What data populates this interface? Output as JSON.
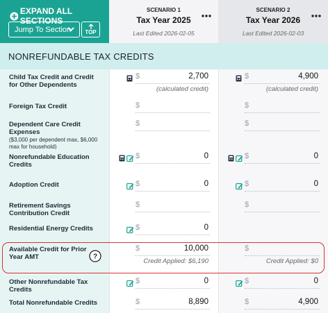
{
  "header": {
    "expand_all": "EXPAND ALL SECTIONS",
    "jump_to": "Jump To Section",
    "top": "TOP"
  },
  "scenarios": [
    {
      "label": "SCENARIO 1",
      "title": "Tax Year 2025",
      "last_edited": "Last Edited 2026-02-05"
    },
    {
      "label": "SCENARIO 2",
      "title": "Tax Year 2026",
      "last_edited": "Last Edited 2026-02-03"
    }
  ],
  "section": {
    "title": "NONREFUNDABLE TAX CREDITS",
    "rows": [
      {
        "label": "Child Tax Credit and Credit for Other Dependents",
        "cells": [
          {
            "currency": "$",
            "value": "2,700",
            "subtext": "(calculated credit)"
          },
          {
            "currency": "$",
            "value": "4,900",
            "subtext": "(calculated credit)"
          }
        ]
      },
      {
        "label": "Foreign Tax Credit",
        "cells": [
          {
            "currency": "$"
          },
          {
            "currency": "$"
          }
        ]
      },
      {
        "label": "Dependent Care Credit Expenses",
        "note": "($3,000 per dependent max, $6,000 max for household)",
        "cells": [
          {
            "currency": "$"
          },
          {
            "currency": "$"
          }
        ]
      },
      {
        "label": "Nonrefundable Education Credits",
        "cells": [
          {
            "currency": "$",
            "value": "0"
          },
          {
            "currency": "$",
            "value": "0"
          }
        ]
      },
      {
        "label": "Adoption Credit",
        "cells": [
          {
            "currency": "$",
            "value": "0"
          },
          {
            "currency": "$",
            "value": "0"
          }
        ]
      },
      {
        "label": "Retirement Savings Contribution Credit",
        "cells": [
          {
            "currency": "$"
          },
          {
            "currency": "$"
          }
        ]
      },
      {
        "label": "Residential Energy Credits",
        "cells": [
          {
            "currency": "$",
            "value": "0"
          },
          null
        ]
      },
      {
        "label": "Available Credit for Prior Year AMT",
        "cells": [
          {
            "currency": "$",
            "value": "10,000",
            "subtext": "Credit Applied: $6,190"
          },
          {
            "currency": "$",
            "subtext": "Credit Applied: $0"
          }
        ]
      },
      {
        "label": "Other Nonrefundable Tax Credits",
        "cells": [
          {
            "currency": "$",
            "value": "0"
          },
          {
            "currency": "$",
            "value": "0"
          }
        ]
      },
      {
        "label": "Total Nonrefundable Credits",
        "cells": [
          {
            "currency": "$",
            "value": "8,890"
          },
          {
            "currency": "$",
            "value": "4,900"
          }
        ]
      }
    ]
  }
}
